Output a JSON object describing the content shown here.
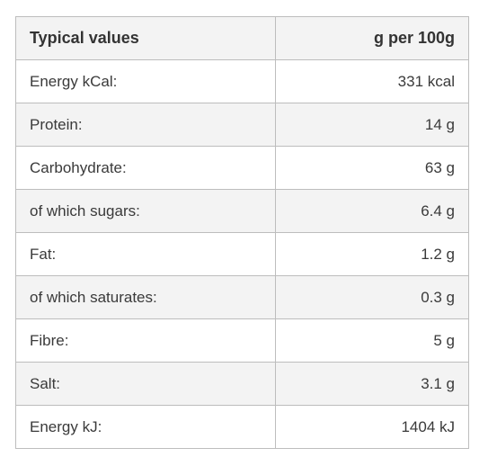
{
  "header": {
    "label": "Typical values",
    "value": "g per 100g"
  },
  "rows": [
    {
      "label": "Energy kCal:",
      "value": "331 kcal"
    },
    {
      "label": "Protein:",
      "value": "14 g"
    },
    {
      "label": "Carbohydrate:",
      "value": "63 g"
    },
    {
      "label": "of which sugars:",
      "value": "6.4 g"
    },
    {
      "label": "Fat:",
      "value": "1.2 g"
    },
    {
      "label": "of which saturates:",
      "value": "0.3 g"
    },
    {
      "label": "Fibre:",
      "value": "5 g"
    },
    {
      "label": "Salt:",
      "value": "3.1 g"
    },
    {
      "label": "Energy kJ:",
      "value": "1404 kJ"
    }
  ],
  "colors": {
    "shaded_row": "#f3f3f3",
    "border": "#bdbdbd",
    "text": "#3a3a3a"
  }
}
